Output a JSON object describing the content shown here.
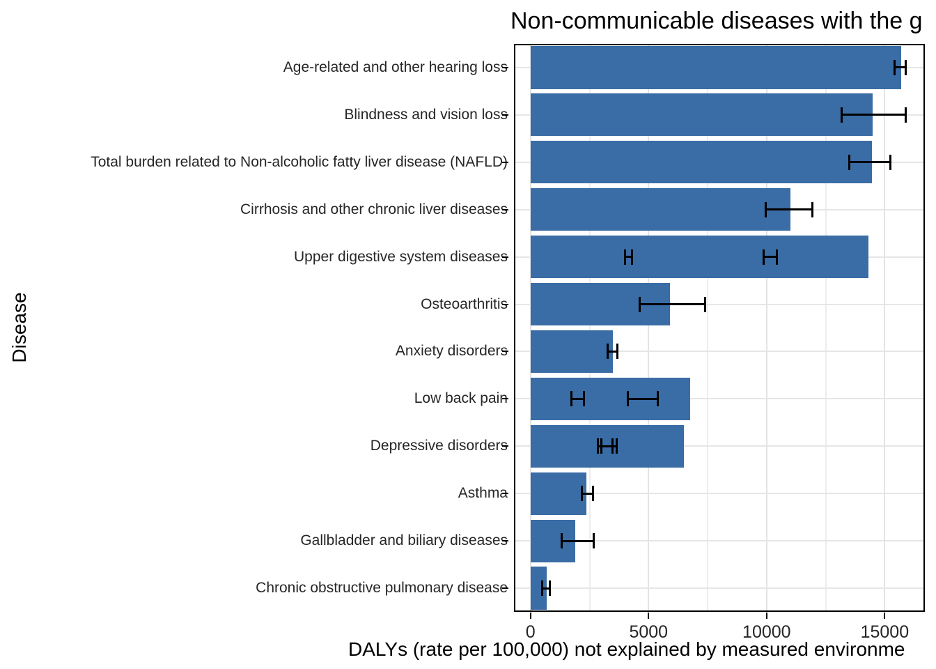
{
  "chart_data": {
    "type": "bar",
    "orientation": "horizontal",
    "title": "Non-communicable diseases with the g",
    "xlabel": "DALYs (rate per 100,000) not explained by measured environme",
    "ylabel": "Disease",
    "bar_color": "#3A6CA6",
    "errorbar_color": "#000000",
    "grid": true,
    "legend_position": "none",
    "xlim": [
      -700,
      16700
    ],
    "x_major_ticks": [
      0,
      5000,
      10000,
      15000
    ],
    "x_minor_gridlines": [
      2500,
      7500,
      12500
    ],
    "categories": [
      "Age-related and other hearing loss",
      "Blindness and vision loss",
      "Total burden related to Non-alcoholic fatty liver disease (NAFLD)",
      "Cirrhosis and other chronic liver diseases",
      "Upper digestive system diseases",
      "Osteoarthritis",
      "Anxiety disorders",
      "Low back pain",
      "Depressive disorders",
      "Asthma",
      "Gallbladder and biliary diseases",
      "Chronic obstructive pulmonary disease"
    ],
    "values": [
      15700,
      14500,
      14450,
      11000,
      14300,
      5900,
      3500,
      6750,
      6500,
      2370,
      1900,
      690
    ],
    "error_bars": [
      [
        [
          15400,
          15900
        ]
      ],
      [
        [
          13150,
          15900
        ]
      ],
      [
        [
          13500,
          15250
        ]
      ],
      [
        [
          9950,
          11950
        ]
      ],
      [
        [
          4000,
          4300
        ],
        [
          9850,
          10450
        ]
      ],
      [
        [
          4600,
          7400
        ]
      ],
      [
        [
          3250,
          3700
        ]
      ],
      [
        [
          1730,
          2290
        ],
        [
          4100,
          5400
        ]
      ],
      [
        [
          2850,
          3500
        ],
        [
          3000,
          3650
        ]
      ],
      [
        [
          2170,
          2650
        ]
      ],
      [
        [
          1300,
          2700
        ]
      ],
      [
        [
          490,
          830
        ]
      ]
    ]
  }
}
